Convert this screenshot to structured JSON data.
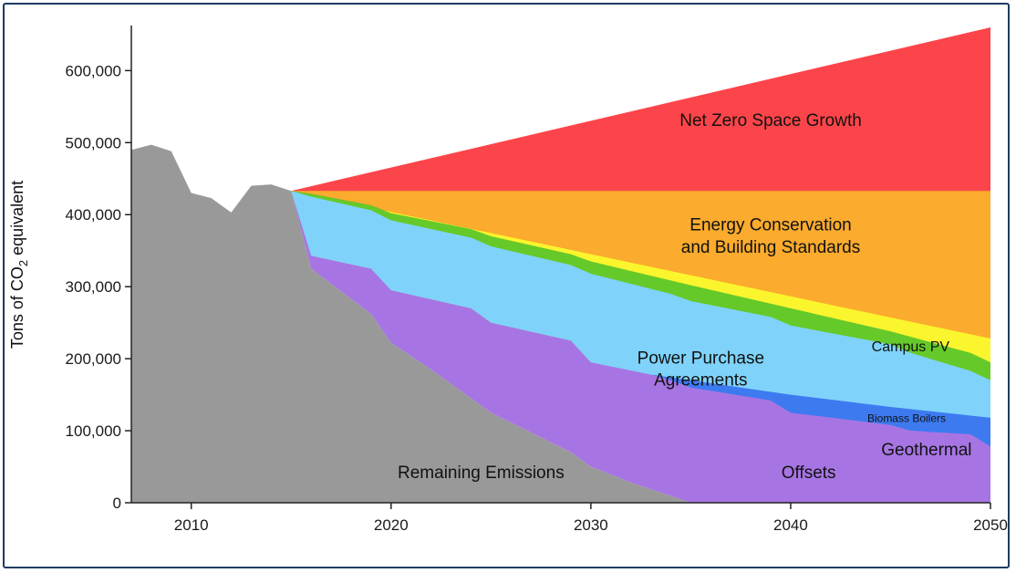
{
  "chart_data": {
    "type": "area",
    "title": "",
    "xlabel": "",
    "ylabel": {
      "prefix": "Tons of CO",
      "sub": "2",
      "suffix": " equivalent"
    },
    "xlim": [
      2007,
      2050
    ],
    "ylim": [
      0,
      660000
    ],
    "x_ticks": [
      2010,
      2020,
      2030,
      2040,
      2050
    ],
    "y_ticks": [
      0,
      100000,
      200000,
      300000,
      400000,
      500000,
      600000
    ],
    "y_tick_labels": [
      "0",
      "100,000",
      "200,000",
      "300,000",
      "400,000",
      "500,000",
      "600,000"
    ],
    "series": [
      {
        "name": "Remaining Emissions",
        "color": "#999999",
        "points": [
          [
            2007,
            490000
          ],
          [
            2008,
            497000
          ],
          [
            2009,
            488000
          ],
          [
            2010,
            430000
          ],
          [
            2011,
            423000
          ],
          [
            2012,
            403000
          ],
          [
            2013,
            440000
          ],
          [
            2014,
            442000
          ],
          [
            2015,
            433000
          ],
          [
            2016,
            325000
          ],
          [
            2019,
            262000
          ],
          [
            2020,
            222000
          ],
          [
            2022,
            185000
          ],
          [
            2025,
            125000
          ],
          [
            2029,
            70000
          ],
          [
            2030,
            50000
          ],
          [
            2032,
            28000
          ],
          [
            2035,
            0
          ],
          [
            2050,
            0
          ]
        ]
      },
      {
        "name": "Offsets",
        "color": "#a775e3",
        "points": [
          [
            2015,
            433000
          ],
          [
            2016,
            343000
          ],
          [
            2019,
            325000
          ],
          [
            2020,
            295000
          ],
          [
            2024,
            270000
          ],
          [
            2025,
            250000
          ],
          [
            2029,
            225000
          ],
          [
            2030,
            195000
          ],
          [
            2033,
            178000
          ],
          [
            2034,
            168000
          ],
          [
            2035,
            152000
          ],
          [
            2039,
            128000
          ],
          [
            2040,
            95000
          ],
          [
            2045,
            60000
          ],
          [
            2046,
            35000
          ],
          [
            2049,
            18000
          ],
          [
            2050,
            5000
          ]
        ]
      },
      {
        "name": "Geothermal",
        "color": "#3d7af0",
        "points": [
          [
            2015,
            433000
          ],
          [
            2016,
            343000
          ],
          [
            2019,
            325000
          ],
          [
            2020,
            295000
          ],
          [
            2024,
            270000
          ],
          [
            2025,
            250000
          ],
          [
            2029,
            225000
          ],
          [
            2030,
            195000
          ],
          [
            2033,
            178000
          ],
          [
            2034,
            170000
          ],
          [
            2035,
            160000
          ],
          [
            2039,
            142000
          ],
          [
            2040,
            125000
          ],
          [
            2045,
            108000
          ],
          [
            2046,
            100000
          ],
          [
            2049,
            95000
          ],
          [
            2050,
            78000
          ]
        ]
      },
      {
        "name": "Biomass Boilers",
        "color": "#7fd3fb",
        "points": [
          [
            2015,
            433000
          ],
          [
            2016,
            343000
          ],
          [
            2019,
            325000
          ],
          [
            2020,
            295000
          ],
          [
            2024,
            270000
          ],
          [
            2025,
            250000
          ],
          [
            2029,
            225000
          ],
          [
            2030,
            195000
          ],
          [
            2033,
            178000
          ],
          [
            2035,
            170000
          ],
          [
            2040,
            150000
          ],
          [
            2045,
            133000
          ],
          [
            2050,
            118000
          ]
        ]
      },
      {
        "name": "Power Purchase Agreements",
        "color": "#66c92a",
        "points": [
          [
            2015,
            433000
          ],
          [
            2016,
            425000
          ],
          [
            2019,
            406000
          ],
          [
            2020,
            392000
          ],
          [
            2024,
            368000
          ],
          [
            2025,
            356000
          ],
          [
            2029,
            330000
          ],
          [
            2030,
            318000
          ],
          [
            2034,
            290000
          ],
          [
            2035,
            280000
          ],
          [
            2039,
            258000
          ],
          [
            2040,
            246000
          ],
          [
            2045,
            220000
          ],
          [
            2046,
            208000
          ],
          [
            2049,
            183000
          ],
          [
            2050,
            170000
          ]
        ]
      },
      {
        "name": "Campus PV",
        "color": "#fbf52d",
        "points": [
          [
            2015,
            433000
          ],
          [
            2016,
            429000
          ],
          [
            2019,
            413000
          ],
          [
            2020,
            402000
          ],
          [
            2024,
            380000
          ],
          [
            2025,
            370000
          ],
          [
            2029,
            345000
          ],
          [
            2030,
            335000
          ],
          [
            2035,
            302000
          ],
          [
            2040,
            270000
          ],
          [
            2045,
            238000
          ],
          [
            2049,
            208000
          ],
          [
            2050,
            195000
          ]
        ]
      },
      {
        "name": "Energy Conservation and Building Standards",
        "color": "#fbab2d",
        "points": [
          [
            2015,
            433000
          ],
          [
            2050,
            228000
          ]
        ]
      },
      {
        "name": "Net Zero Space Growth",
        "color": "#fc454a",
        "points": [
          [
            2015,
            433000
          ],
          [
            2050,
            433000
          ]
        ]
      }
    ],
    "top_envelope": [
      [
        2015,
        433000
      ],
      [
        2050,
        660000
      ]
    ],
    "annotations": [
      {
        "text": "Net Zero Space Growth",
        "x": 2039,
        "y": 523000,
        "size": 19,
        "anchor": "middle"
      },
      {
        "text": "Energy Conservation",
        "x": 2039,
        "y": 378000,
        "size": 19,
        "anchor": "middle"
      },
      {
        "text": "and Building Standards",
        "x": 2039,
        "y": 347000,
        "size": 19,
        "anchor": "middle"
      },
      {
        "text": "Campus PV",
        "x": 2046,
        "y": 210000,
        "size": 16,
        "anchor": "middle"
      },
      {
        "text": "Power Purchase",
        "x": 2035.5,
        "y": 193000,
        "size": 19,
        "anchor": "middle"
      },
      {
        "text": "Agreements",
        "x": 2035.5,
        "y": 163000,
        "size": 19,
        "anchor": "middle"
      },
      {
        "text": "Biomass Boilers",
        "x": 2045.8,
        "y": 112000,
        "size": 12,
        "anchor": "middle"
      },
      {
        "text": "Geothermal",
        "x": 2046.8,
        "y": 66000,
        "size": 19,
        "anchor": "middle"
      },
      {
        "text": "Offsets",
        "x": 2040.9,
        "y": 34000,
        "size": 19,
        "anchor": "middle"
      },
      {
        "text": "Remaining Emissions",
        "x": 2024.5,
        "y": 34000,
        "size": 19,
        "anchor": "middle"
      }
    ]
  }
}
